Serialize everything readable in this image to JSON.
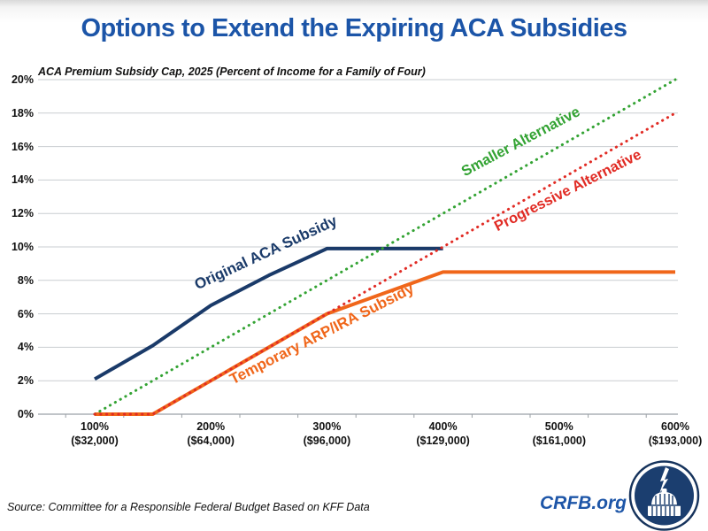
{
  "page": {
    "title": "Options to Extend the Expiring ACA Subsidies",
    "source_note": "Source: Committee for a Responsible Federal Budget Based on KFF Data",
    "brand": {
      "site_label": "CRFB.org",
      "logo_icon": "capitol-dome-lightning-logo"
    }
  },
  "colors": {
    "title_blue": "#1C55A8",
    "brand_blue": "#1E56A8",
    "navy_line": "#1A3A69",
    "orange_line": "#F0661A",
    "green_line": "#33A333",
    "red_line": "#E12B24",
    "gridline": "#C9CDD1",
    "axis_line": "#9AA0A6"
  },
  "chart_data": {
    "type": "line",
    "title": "ACA Premium Subsidy Cap, 2025 (Percent of Income for a Family of Four)",
    "xlabel": "",
    "ylabel": "",
    "xlim": [
      100,
      600
    ],
    "ylim": [
      0,
      20
    ],
    "grid": true,
    "legend_position": "inline-rotated-labels",
    "y_ticks": [
      {
        "value": 0,
        "label": "0%"
      },
      {
        "value": 2,
        "label": "2%"
      },
      {
        "value": 4,
        "label": "4%"
      },
      {
        "value": 6,
        "label": "6%"
      },
      {
        "value": 8,
        "label": "8%"
      },
      {
        "value": 10,
        "label": "10%"
      },
      {
        "value": 12,
        "label": "12%"
      },
      {
        "value": 14,
        "label": "14%"
      },
      {
        "value": 16,
        "label": "16%"
      },
      {
        "value": 18,
        "label": "18%"
      },
      {
        "value": 20,
        "label": "20%"
      }
    ],
    "x_ticks": [
      {
        "value": 100,
        "label_percent": "100%",
        "label_income": "($32,000)"
      },
      {
        "value": 200,
        "label_percent": "200%",
        "label_income": "($64,000)"
      },
      {
        "value": 300,
        "label_percent": "300%",
        "label_income": "($96,000)"
      },
      {
        "value": 400,
        "label_percent": "400%",
        "label_income": "($129,000)"
      },
      {
        "value": 500,
        "label_percent": "500%",
        "label_income": "($161,000)"
      },
      {
        "value": 600,
        "label_percent": "600%",
        "label_income": "($193,000)"
      }
    ],
    "series": [
      {
        "name": "Original ACA Subsidy",
        "color": "#1A3A69",
        "style": "solid",
        "points": [
          [
            100,
            2.1
          ],
          [
            150,
            4.1
          ],
          [
            200,
            6.5
          ],
          [
            250,
            8.3
          ],
          [
            300,
            9.9
          ],
          [
            400,
            9.9
          ]
        ]
      },
      {
        "name": "Temporary ARP/IRA Subsidy",
        "color": "#F0661A",
        "style": "solid",
        "points": [
          [
            100,
            0
          ],
          [
            150,
            0
          ],
          [
            200,
            2
          ],
          [
            250,
            4
          ],
          [
            300,
            6
          ],
          [
            400,
            8.5
          ],
          [
            600,
            8.5
          ]
        ]
      },
      {
        "name": "Smaller Alternative",
        "color": "#33A333",
        "style": "dotted",
        "points": [
          [
            100,
            0
          ],
          [
            600,
            20
          ]
        ]
      },
      {
        "name": "Progressive Alternative",
        "color": "#E12B24",
        "style": "dotted",
        "points": [
          [
            100,
            0
          ],
          [
            150,
            0
          ],
          [
            300,
            6
          ],
          [
            600,
            18
          ]
        ]
      }
    ]
  }
}
